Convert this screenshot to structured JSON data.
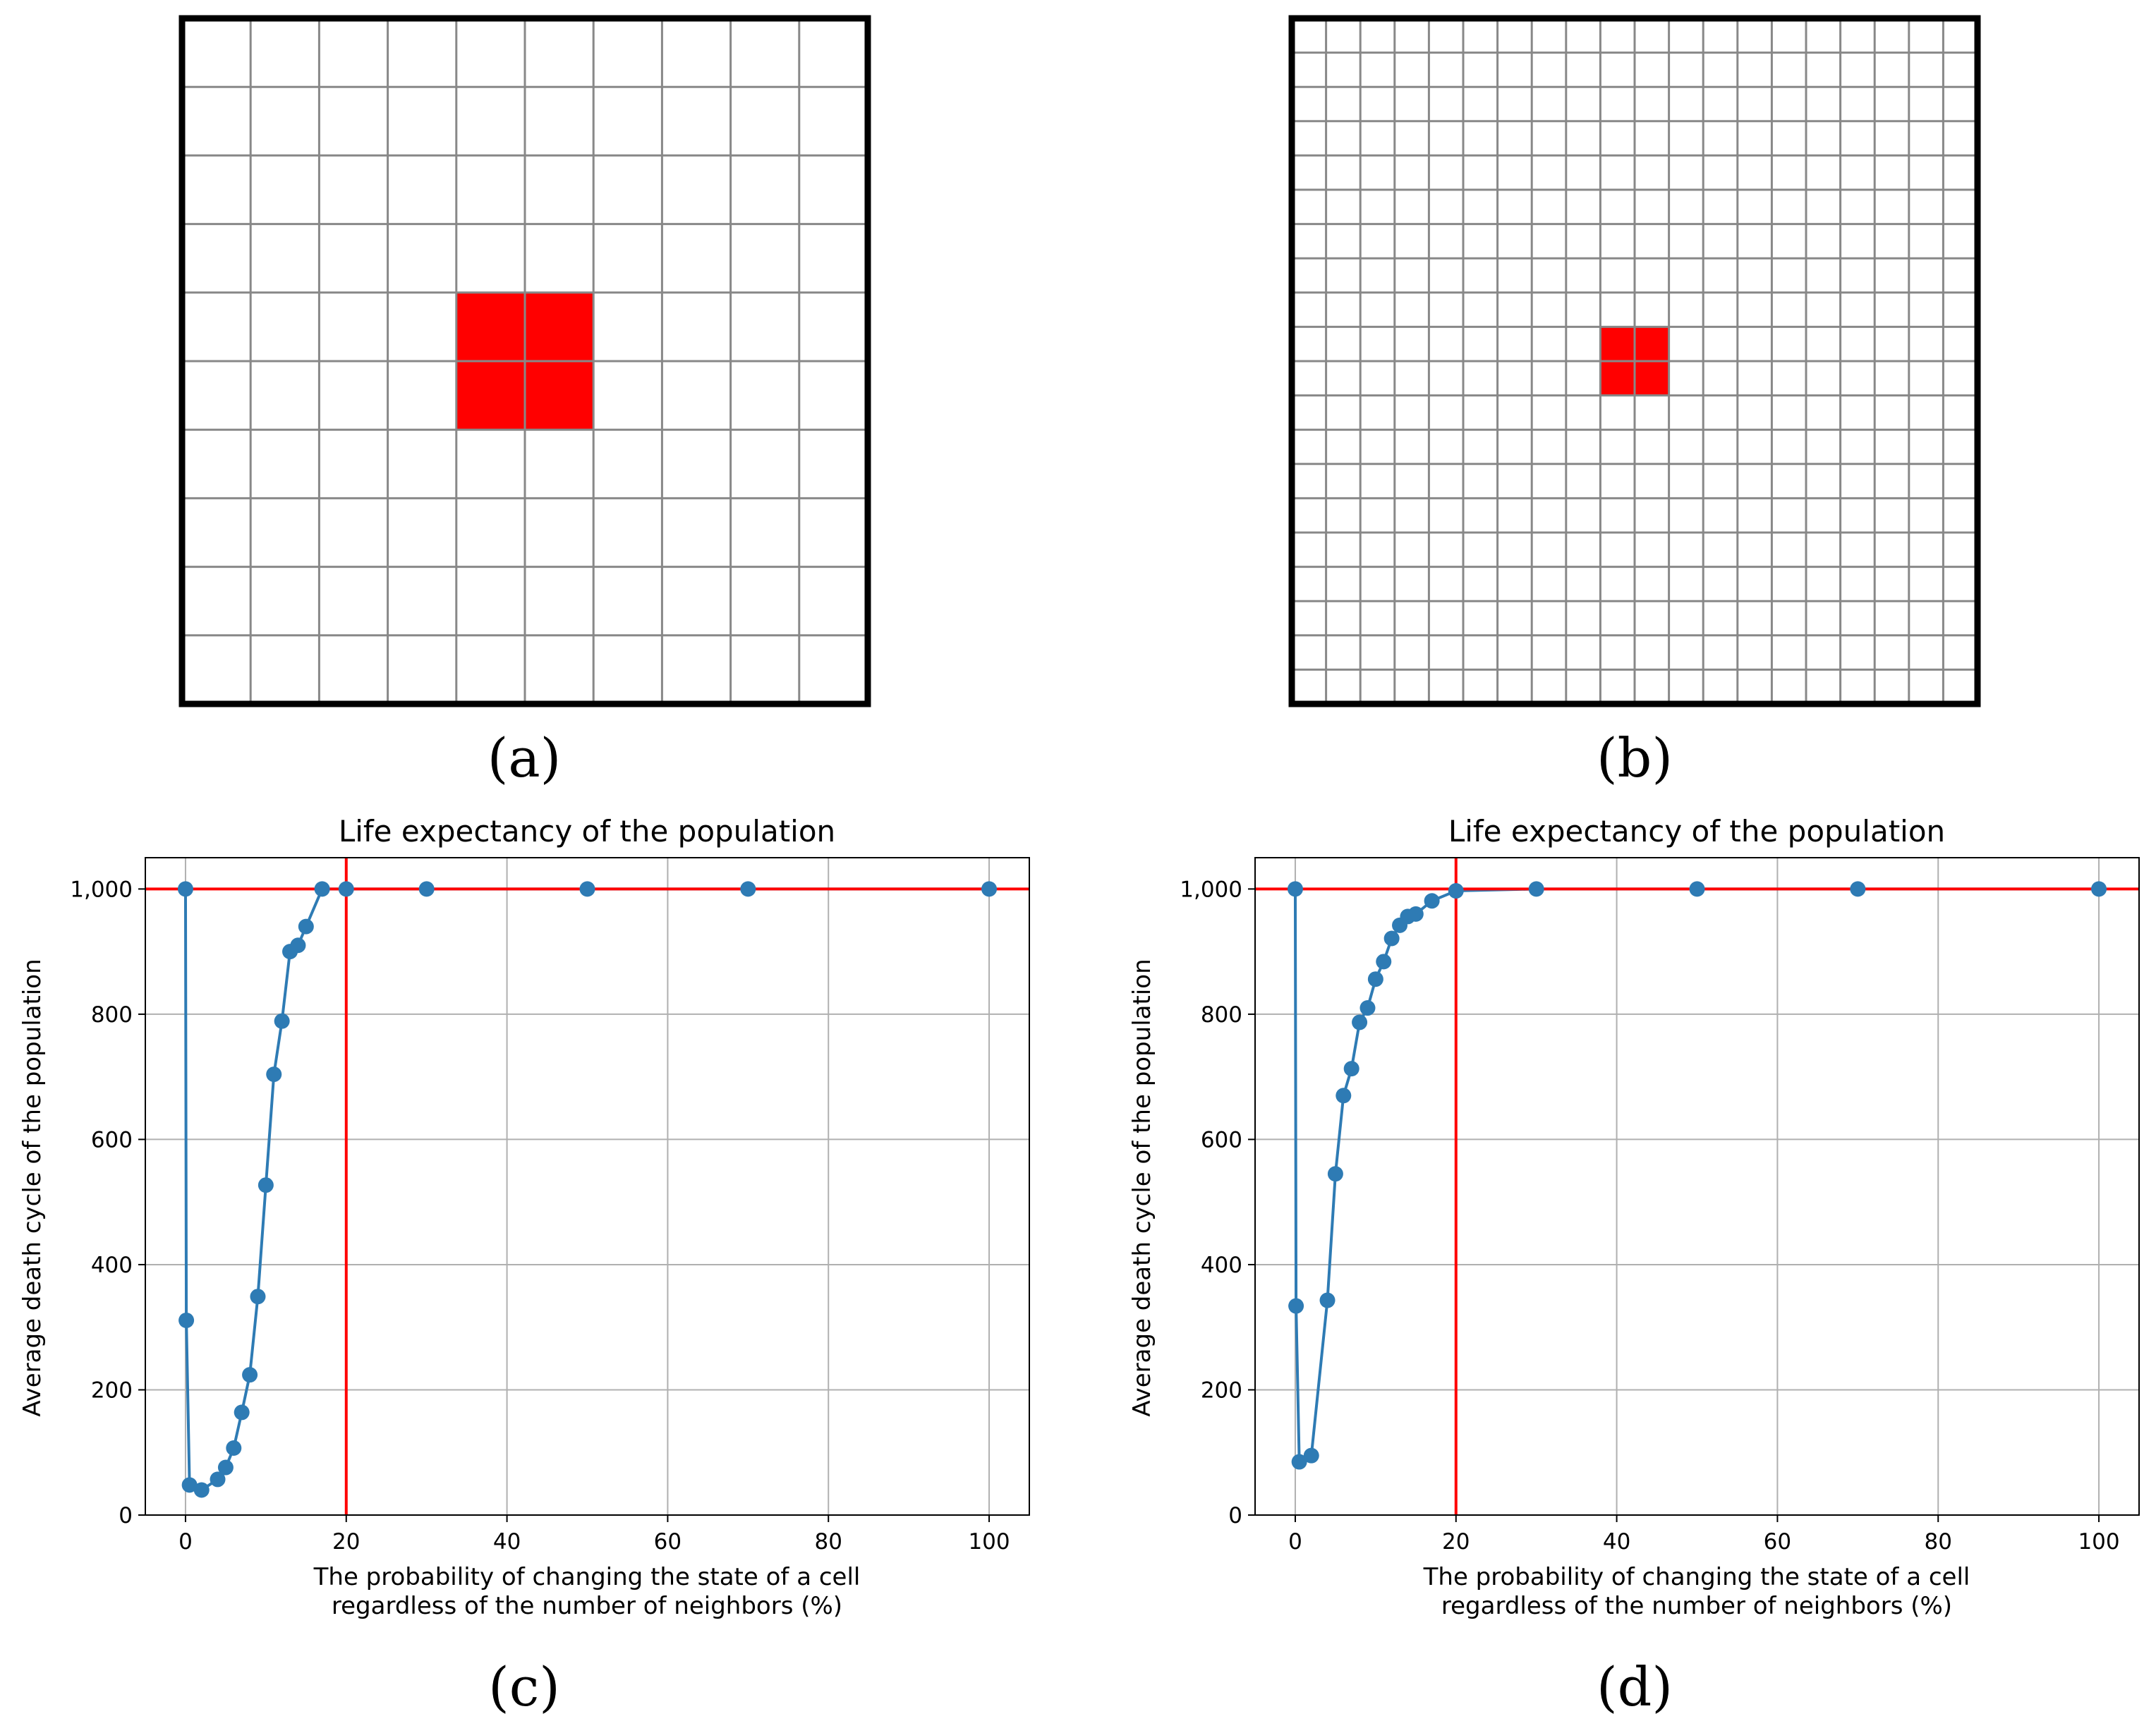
{
  "colors": {
    "grid_line": "#888888",
    "highlight": "#ff0000",
    "border": "#000000",
    "series": "#2e7bb4",
    "reference_line": "#ff0000",
    "chart_grid": "#b0b0b0"
  },
  "panels": [
    {
      "label": "(a)",
      "grid_cells": 10,
      "highlight_cells": [
        [
          4,
          4
        ],
        [
          4,
          5
        ],
        [
          5,
          4
        ],
        [
          5,
          5
        ]
      ]
    },
    {
      "label": "(b)",
      "grid_cells": 20,
      "highlight_cells": [
        [
          9,
          9
        ],
        [
          9,
          10
        ],
        [
          10,
          9
        ],
        [
          10,
          10
        ]
      ]
    },
    {
      "label": "(c)"
    },
    {
      "label": "(d)"
    }
  ],
  "chart_data": [
    {
      "type": "line",
      "title": "Life expectancy of the population",
      "xlabel_lines": [
        "The probability of changing the state of a cell",
        "regardless of the number of neighbors (%)"
      ],
      "ylabel": "Average death cycle of the population",
      "xlim": [
        -5,
        105
      ],
      "ylim": [
        0,
        1050
      ],
      "xticks": [
        0,
        20,
        40,
        60,
        80,
        100
      ],
      "xtick_labels": [
        "0",
        "20",
        "40",
        "60",
        "80",
        "100"
      ],
      "yticks": [
        0,
        200,
        400,
        600,
        800,
        1000
      ],
      "ytick_labels": [
        "0",
        "200",
        "400",
        "600",
        "800",
        "1,000"
      ],
      "grid": true,
      "reference_lines": {
        "x": 20,
        "y": 1000
      },
      "series": [
        {
          "name": "average death cycle",
          "x": [
            0,
            0.1,
            0.5,
            2,
            4,
            5,
            6,
            7,
            8,
            9,
            10,
            11,
            12,
            13,
            14,
            15,
            17,
            20,
            30,
            50,
            70,
            100
          ],
          "y": [
            1000,
            311,
            48,
            40,
            57,
            76,
            107,
            164,
            224,
            349,
            527,
            704,
            789,
            900,
            910,
            940,
            1000,
            1000,
            1000,
            1000,
            1000,
            1000
          ]
        }
      ]
    },
    {
      "type": "line",
      "title": "Life expectancy of the population",
      "xlabel_lines": [
        "The probability of changing the state of a cell",
        "regardless of the number of neighbors (%)"
      ],
      "ylabel": "Average death cycle of the population",
      "xlim": [
        -5,
        105
      ],
      "ylim": [
        0,
        1050
      ],
      "xticks": [
        0,
        20,
        40,
        60,
        80,
        100
      ],
      "xtick_labels": [
        "0",
        "20",
        "40",
        "60",
        "80",
        "100"
      ],
      "yticks": [
        0,
        200,
        400,
        600,
        800,
        1000
      ],
      "ytick_labels": [
        "0",
        "200",
        "400",
        "600",
        "800",
        "1,000"
      ],
      "grid": true,
      "reference_lines": {
        "x": 20,
        "y": 1000
      },
      "series": [
        {
          "name": "average death cycle",
          "x": [
            0,
            0.1,
            0.5,
            2,
            4,
            5,
            6,
            7,
            8,
            9,
            10,
            11,
            12,
            13,
            14,
            15,
            17,
            20,
            30,
            50,
            70,
            100
          ],
          "y": [
            1000,
            334,
            85,
            95,
            343,
            545,
            670,
            713,
            787,
            810,
            856,
            884,
            921,
            942,
            956,
            960,
            981,
            997,
            1000,
            1000,
            1000,
            1000
          ]
        }
      ]
    }
  ]
}
